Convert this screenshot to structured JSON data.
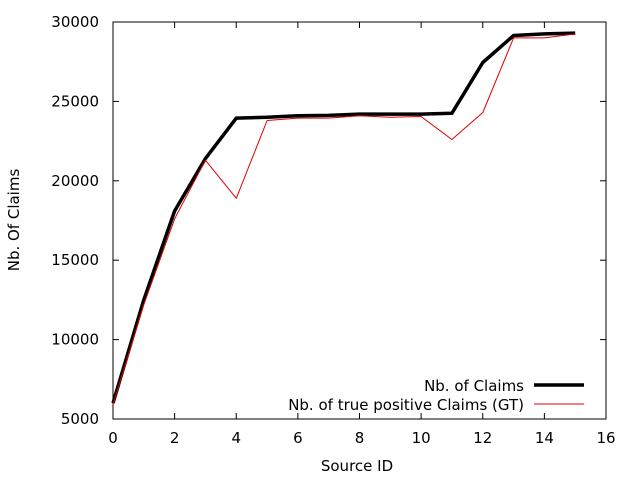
{
  "chart_data": {
    "type": "line",
    "title": "",
    "xlabel": "Source ID",
    "ylabel": "Nb. Of Claims",
    "xlim": [
      0,
      16
    ],
    "ylim": [
      5000,
      30000
    ],
    "xticks": [
      0,
      2,
      4,
      6,
      8,
      10,
      12,
      14,
      16
    ],
    "yticks": [
      5000,
      10000,
      15000,
      20000,
      25000,
      30000
    ],
    "grid": false,
    "legend_position": "bottom-right",
    "series": [
      {
        "name": "Nb. of Claims",
        "color": "#000000",
        "x": [
          0,
          1,
          2,
          3,
          4,
          5,
          6,
          7,
          8,
          9,
          10,
          11,
          12,
          13,
          14,
          15
        ],
        "y": [
          6000,
          12500,
          18100,
          21400,
          23950,
          24000,
          24100,
          24120,
          24200,
          24200,
          24200,
          24250,
          27450,
          29150,
          29250,
          29300
        ]
      },
      {
        "name": "Nb. of true positive Claims (GT)",
        "color": "#e00000",
        "x": [
          0,
          1,
          2,
          3,
          4,
          5,
          6,
          7,
          8,
          9,
          10,
          11,
          12,
          13,
          14,
          15
        ],
        "y": [
          5900,
          12200,
          17600,
          21300,
          18900,
          23800,
          23950,
          23950,
          24100,
          24000,
          24050,
          22600,
          24300,
          29000,
          29000,
          29250
        ]
      }
    ]
  }
}
